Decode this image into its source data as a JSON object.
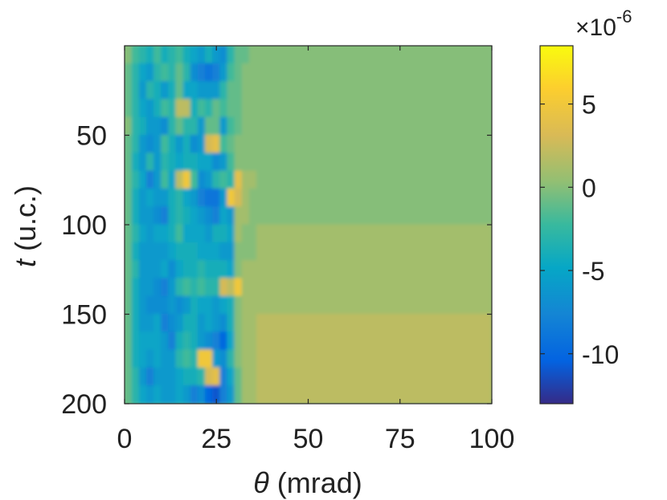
{
  "chart_data": {
    "type": "heatmap",
    "xlabel_symbol": "θ",
    "xlabel_unit": "(mrad)",
    "ylabel_symbol": "t",
    "ylabel_unit": "(u.c.)",
    "xlim": [
      0,
      100
    ],
    "ylim": [
      0,
      200
    ],
    "y_reversed": true,
    "x_ticks": [
      0,
      25,
      50,
      75,
      100
    ],
    "y_ticks": [
      50,
      100,
      150,
      200
    ],
    "colorbar": {
      "colormap": "parula",
      "range": [
        -13,
        8.5
      ],
      "ticks": [
        5,
        0,
        -5,
        -10
      ],
      "exponent_label": "×10",
      "exponent_power": "-6"
    },
    "value_scale": 1e-06,
    "grid": false,
    "x_centers": [
      1,
      3,
      5,
      7,
      9,
      11,
      13,
      15,
      17,
      19,
      21,
      23,
      25,
      27,
      29,
      31,
      33,
      35,
      37,
      39,
      42,
      47,
      55,
      65,
      75,
      85,
      95
    ],
    "y_centers": [
      5,
      15,
      25,
      35,
      45,
      55,
      65,
      75,
      85,
      95,
      105,
      115,
      125,
      135,
      145,
      155,
      165,
      175,
      185,
      195
    ],
    "z": [
      [
        0,
        -2,
        -3,
        -4,
        -2,
        -4,
        -3,
        -2,
        -4,
        -5,
        -6,
        -4,
        -6,
        -7,
        -3,
        -1,
        -1,
        0,
        0,
        0,
        0,
        0,
        0,
        0,
        0,
        0,
        0
      ],
      [
        -1,
        -3,
        -5,
        -6,
        -3,
        -2,
        -3,
        -1,
        -3,
        -7,
        -8,
        -9,
        -8,
        -6,
        -2,
        -1,
        0,
        0,
        0,
        0,
        0,
        0,
        0,
        0,
        0,
        0,
        0
      ],
      [
        -1,
        -3,
        -6,
        -3,
        -4,
        -6,
        -4,
        -1,
        -5,
        -5,
        -6,
        -6,
        -6,
        -3,
        -1,
        -1,
        0,
        0,
        0,
        0,
        0,
        0,
        0,
        0,
        0,
        0,
        0
      ],
      [
        -1,
        -3,
        -5,
        -6,
        -4,
        -2,
        -3,
        2,
        2,
        -4,
        -2,
        -3,
        -1,
        -2,
        -1,
        -1,
        0,
        0,
        0,
        0,
        0,
        0,
        0,
        0,
        0,
        0,
        0
      ],
      [
        0,
        -3,
        -4,
        -6,
        -6,
        -7,
        -3,
        -1,
        -3,
        -3,
        -6,
        -1,
        -1,
        -6,
        -2,
        -1,
        0,
        0,
        0,
        0,
        0,
        0,
        0,
        0,
        0,
        0,
        0
      ],
      [
        -1,
        -3,
        -6,
        -7,
        -6,
        -2,
        -4,
        -6,
        -4,
        -7,
        -6,
        3,
        4,
        -2,
        -1,
        0,
        0,
        0,
        0,
        0,
        0,
        0,
        0,
        0,
        0,
        0,
        0
      ],
      [
        -1,
        -4,
        -6,
        -3,
        -6,
        -3,
        -4,
        -5,
        -4,
        -4,
        -5,
        -5,
        -7,
        -6,
        -2,
        0,
        0,
        0,
        0,
        0,
        0,
        0,
        0,
        0,
        0,
        0,
        0
      ],
      [
        -1,
        -3,
        -5,
        -8,
        -6,
        -2,
        -5,
        2,
        5,
        -2,
        -7,
        -6,
        -3,
        -2,
        -3,
        4,
        1,
        1,
        0,
        0,
        0,
        0,
        0,
        0,
        0,
        0,
        0
      ],
      [
        -1,
        -4,
        -6,
        -5,
        -6,
        -6,
        -4,
        -3,
        -5,
        -6,
        -8,
        -9,
        -9,
        -6,
        5,
        3,
        1,
        0,
        0,
        0,
        0,
        0,
        0,
        0,
        0,
        0,
        0
      ],
      [
        -1,
        -4,
        -6,
        -6,
        -7,
        -8,
        -4,
        -3,
        -4,
        -5,
        -6,
        -7,
        -8,
        -5,
        -6,
        1,
        1,
        0,
        0,
        0,
        0,
        0,
        0,
        0,
        0,
        0,
        0
      ],
      [
        -1,
        -3,
        -5,
        -6,
        -5,
        -5,
        -4,
        -2,
        -5,
        -5,
        -5,
        -6,
        -4,
        -4,
        -5,
        1,
        0,
        0,
        1,
        1,
        1,
        1,
        1,
        1,
        1,
        1,
        1
      ],
      [
        -1,
        -4,
        -6,
        -6,
        -6,
        -6,
        -5,
        -4,
        -4,
        -4,
        -5,
        -5,
        -5,
        -6,
        -6,
        0,
        0,
        0,
        1,
        1,
        1,
        1,
        1,
        1,
        1,
        1,
        1
      ],
      [
        -1,
        -3,
        -6,
        -6,
        -6,
        -5,
        -7,
        -5,
        -4,
        -4,
        -3,
        -4,
        -4,
        -4,
        -5,
        0,
        1,
        1,
        1,
        1,
        1,
        1,
        1,
        1,
        1,
        1,
        1
      ],
      [
        -1,
        -4,
        -6,
        -6,
        -7,
        -8,
        -6,
        -3,
        -2,
        -3,
        -2,
        -3,
        -3,
        3,
        2,
        5,
        1,
        1,
        1,
        1,
        1,
        1,
        1,
        1,
        1,
        1,
        1
      ],
      [
        -1,
        -4,
        -6,
        -7,
        -7,
        -7,
        -6,
        -7,
        -6,
        -4,
        -5,
        -5,
        -6,
        -5,
        -4,
        0,
        1,
        1,
        1,
        1,
        1,
        1,
        1,
        1,
        1,
        1,
        1
      ],
      [
        -1,
        -4,
        -6,
        -6,
        -5,
        -8,
        -7,
        -6,
        -4,
        -4,
        -6,
        -5,
        -6,
        -7,
        -4,
        0,
        1,
        1,
        2,
        2,
        2,
        2,
        2,
        2,
        2,
        2,
        2
      ],
      [
        -1,
        -4,
        -5,
        -5,
        -5,
        -6,
        -8,
        -4,
        -3,
        -4,
        -6,
        -7,
        -8,
        -10,
        -5,
        0,
        1,
        1,
        2,
        2,
        2,
        2,
        2,
        2,
        2,
        2,
        2
      ],
      [
        -1,
        -4,
        -5,
        -6,
        -5,
        -6,
        -6,
        -3,
        -2,
        -3,
        5,
        5,
        -6,
        -7,
        -3,
        0,
        1,
        1,
        2,
        2,
        2,
        2,
        2,
        2,
        2,
        2,
        2
      ],
      [
        -1,
        -3,
        -6,
        -8,
        -6,
        -6,
        -6,
        -5,
        -4,
        -4,
        -3,
        3,
        4,
        -8,
        -5,
        -1,
        1,
        1,
        2,
        2,
        2,
        2,
        2,
        2,
        2,
        2,
        2
      ],
      [
        -1,
        -3,
        -5,
        -6,
        -5,
        -6,
        -6,
        -5,
        -6,
        -8,
        -7,
        -10,
        -11,
        -8,
        -6,
        -1,
        1,
        1,
        2,
        2,
        2,
        2,
        2,
        2,
        2,
        2,
        2
      ]
    ]
  }
}
